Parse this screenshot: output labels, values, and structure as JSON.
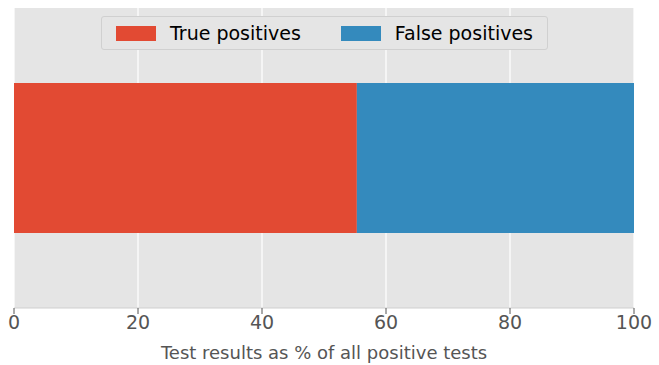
{
  "chart_data": {
    "type": "bar",
    "orientation": "horizontal",
    "stacked": true,
    "categories": [
      null
    ],
    "series": [
      {
        "name": "True positives",
        "color": "#E24A33",
        "values": [
          55.3
        ]
      },
      {
        "name": "False positives",
        "color": "#348ABD",
        "values": [
          44.7
        ]
      }
    ],
    "xlabel": "Test results as % of all positive tests",
    "xlim": [
      0,
      100
    ],
    "xticks": [
      0,
      20,
      40,
      60,
      80,
      100
    ],
    "grid": true,
    "legend": "top",
    "tick_labels": "x"
  }
}
